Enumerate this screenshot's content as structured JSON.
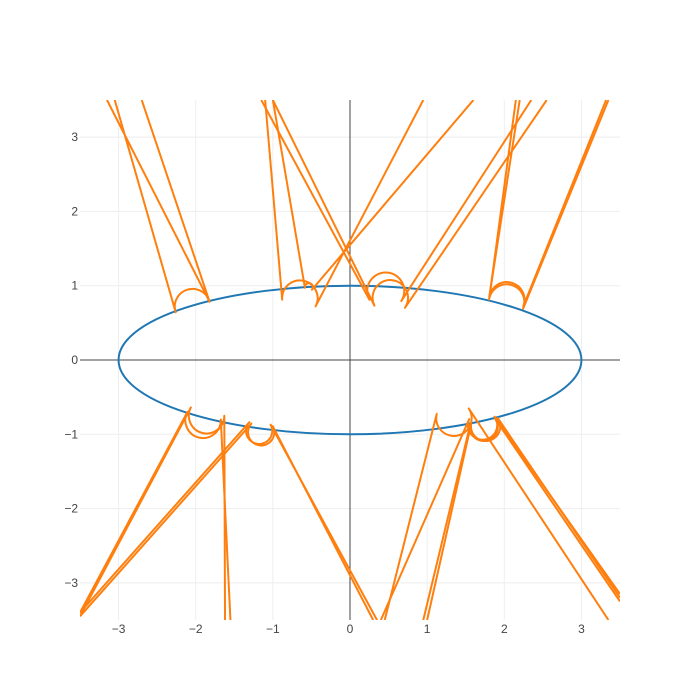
{
  "chart_data": {
    "type": "line",
    "title": "",
    "xlabel": "",
    "ylabel": "",
    "xlim": [
      -3.5,
      3.5
    ],
    "ylim": [
      -3.5,
      3.5
    ],
    "grid": true,
    "legend": "none",
    "x_ticks": [
      -3,
      -2,
      -1,
      0,
      1,
      2,
      3
    ],
    "y_ticks": [
      -3,
      -2,
      -1,
      0,
      1,
      2,
      3
    ],
    "x_tick_labels": [
      "−3",
      "−2",
      "−1",
      "0",
      "1",
      "2",
      "3"
    ],
    "y_tick_labels": [
      "−3",
      "−2",
      "−1",
      "0",
      "1",
      "2",
      "3"
    ],
    "ellipse": {
      "color": "#1f77b4",
      "center": [
        0,
        0
      ],
      "semi_axis_x": 3,
      "semi_axis_y": 1
    },
    "loops_color": "#ff7f0e",
    "loops": [
      {
        "tip": [
          -1.97,
          0.48
        ],
        "radius": 0.23,
        "ends": [
          [
            -2.7,
            3.5
          ],
          [
            -3.05,
            3.5
          ],
          [
            -3.15,
            3.5
          ]
        ]
      },
      {
        "tip": [
          -0.7,
          0.6
        ],
        "radius": 0.23,
        "ends": [
          [
            -1.1,
            3.5
          ],
          [
            0.95,
            3.5
          ]
        ]
      },
      {
        "tip": [
          -0.55,
          0.93
        ],
        "radius": 0.05,
        "ends": [
          [
            -1.0,
            3.5
          ],
          [
            1.6,
            3.5
          ]
        ]
      },
      {
        "tip": [
          0.45,
          0.68
        ],
        "radius": 0.24,
        "ends": [
          [
            -1.15,
            3.5
          ],
          [
            2.35,
            3.5
          ]
        ]
      },
      {
        "tip": [
          0.5,
          0.6
        ],
        "radius": 0.23,
        "ends": [
          [
            -1.0,
            3.5
          ],
          [
            2.55,
            3.5
          ]
        ]
      },
      {
        "tip": [
          1.97,
          0.55
        ],
        "radius": 0.23,
        "ends": [
          [
            2.15,
            3.5
          ],
          [
            3.35,
            3.5
          ]
        ]
      },
      {
        "tip": [
          1.97,
          0.58
        ],
        "radius": 0.23,
        "ends": [
          [
            2.2,
            3.5
          ],
          [
            3.32,
            3.5
          ]
        ]
      },
      {
        "tip": [
          -1.85,
          -0.58
        ],
        "radius": 0.23,
        "ends": [
          [
            -3.5,
            -3.4
          ],
          [
            -1.55,
            -3.5
          ]
        ]
      },
      {
        "tip": [
          -1.8,
          -0.52
        ],
        "radius": 0.23,
        "ends": [
          [
            -3.5,
            -3.45
          ],
          [
            -1.62,
            -3.5
          ]
        ]
      },
      {
        "tip": [
          -1.15,
          -0.78
        ],
        "radius": 0.17,
        "ends": [
          [
            -3.5,
            -3.4
          ],
          [
            0.35,
            -3.5
          ]
        ]
      },
      {
        "tip": [
          -1.12,
          -0.8
        ],
        "radius": 0.17,
        "ends": [
          [
            -3.5,
            -3.45
          ],
          [
            0.3,
            -3.5
          ]
        ]
      },
      {
        "tip": [
          1.3,
          -0.55
        ],
        "radius": 0.23,
        "ends": [
          [
            0.45,
            -3.5
          ],
          [
            3.35,
            -3.5
          ]
        ]
      },
      {
        "tip": [
          1.7,
          -0.68
        ],
        "radius": 0.19,
        "ends": [
          [
            0.4,
            -3.5
          ],
          [
            3.5,
            -3.15
          ]
        ]
      },
      {
        "tip": [
          1.72,
          -0.7
        ],
        "radius": 0.19,
        "ends": [
          [
            1.0,
            -3.5
          ],
          [
            3.5,
            -3.2
          ]
        ]
      },
      {
        "tip": [
          1.7,
          -0.72
        ],
        "radius": 0.18,
        "ends": [
          [
            0.95,
            -3.5
          ],
          [
            3.5,
            -3.25
          ]
        ]
      }
    ]
  }
}
